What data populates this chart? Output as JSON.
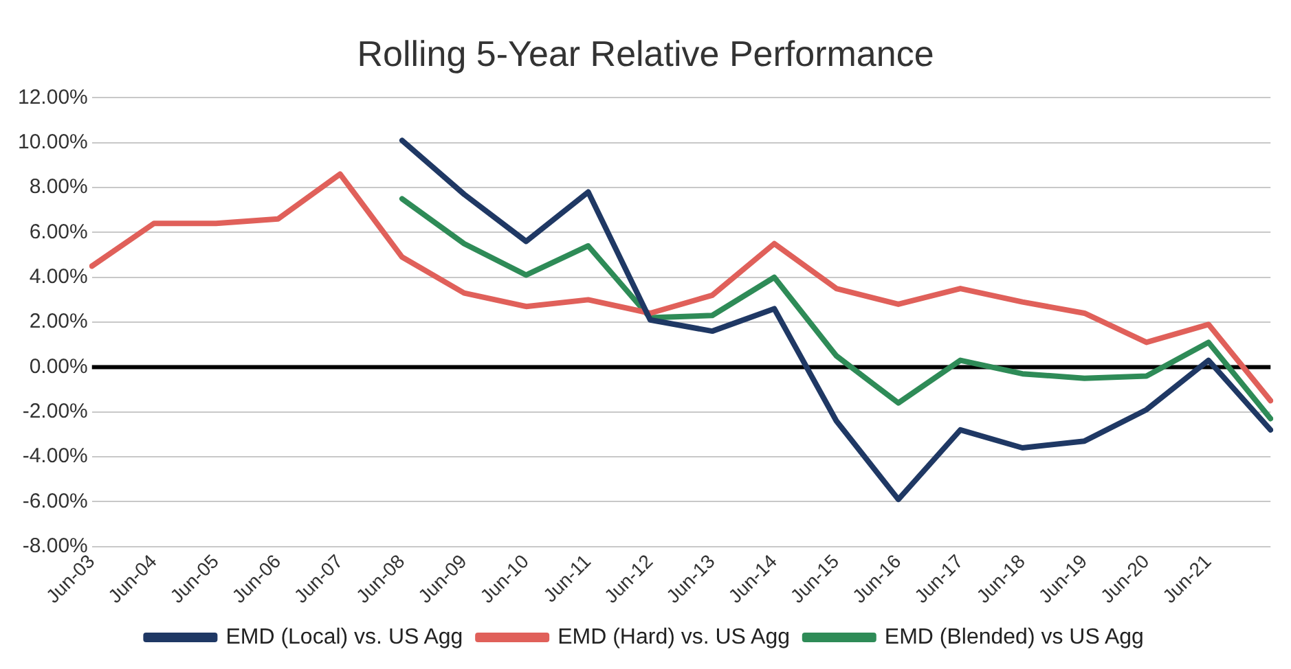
{
  "chart_data": {
    "type": "line",
    "title": "Rolling 5-Year Relative Performance",
    "categories": [
      "Jun-03",
      "Jun-04",
      "Jun-05",
      "Jun-06",
      "Jun-07",
      "Jun-08",
      "Jun-09",
      "Jun-10",
      "Jun-11",
      "Jun-12",
      "Jun-13",
      "Jun-14",
      "Jun-15",
      "Jun-16",
      "Jun-17",
      "Jun-18",
      "Jun-19",
      "Jun-20",
      "Jun-21",
      null
    ],
    "series": [
      {
        "name": "EMD (Local) vs. US Agg",
        "color": "#1f3864",
        "values": [
          null,
          null,
          null,
          null,
          null,
          10.1,
          7.7,
          5.6,
          7.8,
          2.1,
          1.6,
          2.6,
          -2.4,
          -5.9,
          -2.8,
          -3.6,
          -3.3,
          -1.9,
          0.3,
          -2.8
        ]
      },
      {
        "name": "EMD (Hard) vs. US Agg",
        "color": "#e0605a",
        "values": [
          4.5,
          6.4,
          6.4,
          6.6,
          8.6,
          4.9,
          3.3,
          2.7,
          3.0,
          2.4,
          3.2,
          5.5,
          3.5,
          2.8,
          3.5,
          2.9,
          2.4,
          1.1,
          1.9,
          -1.5
        ]
      },
      {
        "name": "EMD (Blended) vs US Agg",
        "color": "#2e8b57",
        "values": [
          null,
          null,
          null,
          null,
          null,
          7.5,
          5.5,
          4.1,
          5.4,
          2.2,
          2.3,
          4.0,
          0.5,
          -1.6,
          0.3,
          -0.3,
          -0.5,
          -0.4,
          1.1,
          -2.3
        ]
      }
    ],
    "ylim": [
      -8,
      12
    ],
    "yticks": [
      {
        "value": -8,
        "label": "-8.00%"
      },
      {
        "value": -6,
        "label": "-6.00%"
      },
      {
        "value": -4,
        "label": "-4.00%"
      },
      {
        "value": -2,
        "label": "-2.00%"
      },
      {
        "value": 0,
        "label": "0.00%"
      },
      {
        "value": 2,
        "label": "2.00%"
      },
      {
        "value": 4,
        "label": "4.00%"
      },
      {
        "value": 6,
        "label": "6.00%"
      },
      {
        "value": 8,
        "label": "8.00%"
      },
      {
        "value": 10,
        "label": "10.00%"
      },
      {
        "value": 12,
        "label": "12.00%"
      }
    ],
    "ref_lines": [
      {
        "axis": "y",
        "value": 0,
        "color": "#000000"
      }
    ],
    "grid": "y",
    "legend": "bottom",
    "marker": "none",
    "line_style": "solid"
  }
}
